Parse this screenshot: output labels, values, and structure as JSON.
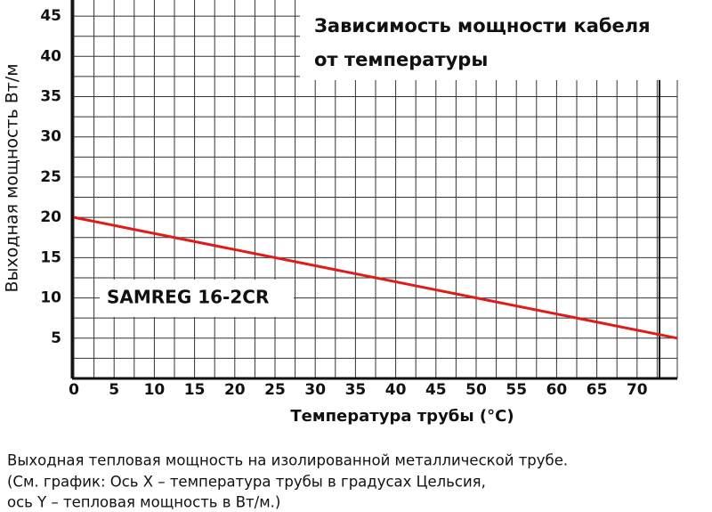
{
  "chart_data": {
    "type": "line",
    "title": "Зависимость мощности кабеля от температуры",
    "annotation": "SAMREG 16-2CR",
    "x_label": "Температура трубы (°C)",
    "y_label": "Выходная мощность Вт/м",
    "series": [
      {
        "name": "SAMREG 16-2CR",
        "color": "#e01b1b",
        "x": [
          0,
          75
        ],
        "values": [
          20,
          5
        ]
      }
    ],
    "xlim": [
      0,
      75
    ],
    "xticks": [
      0,
      5,
      10,
      15,
      20,
      25,
      30,
      35,
      40,
      45,
      50,
      55,
      60,
      65,
      70
    ],
    "ylim": [
      0,
      47
    ],
    "yticks": [
      5,
      10,
      15,
      20,
      25,
      30,
      35,
      40,
      45
    ],
    "grid": true
  },
  "caption": [
    "Выходная тепловая мощность на изолированной металлической трубе.",
    "(См. график: Ось X – температура трубы в градусах Цельсия,",
    "ось Y –  тепловая мощность в Вт/м.)"
  ]
}
